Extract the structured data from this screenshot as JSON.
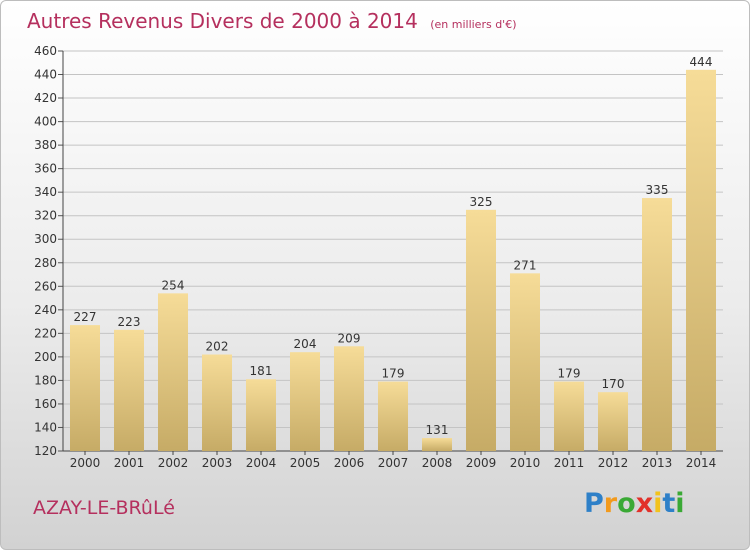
{
  "chart_data": {
    "type": "bar",
    "title": "Autres Revenus Divers de 2000 à 2014",
    "subtitle": "(en milliers d'€)",
    "categories": [
      "2000",
      "2001",
      "2002",
      "2003",
      "2004",
      "2005",
      "2006",
      "2007",
      "2008",
      "2009",
      "2010",
      "2011",
      "2012",
      "2013",
      "2014"
    ],
    "values": [
      227,
      223,
      254,
      202,
      181,
      204,
      209,
      179,
      131,
      325,
      271,
      179,
      170,
      335,
      444
    ],
    "ylim": [
      120,
      460
    ],
    "yticks": [
      120,
      140,
      160,
      180,
      200,
      220,
      240,
      260,
      280,
      300,
      320,
      340,
      360,
      380,
      400,
      420,
      440,
      460
    ],
    "grid": true,
    "bar_color": "#e8c878",
    "grid_color": "#c4c4c4",
    "title_color": "#b5305e"
  },
  "footer": {
    "town": "AZAY-LE-BRûLé",
    "logo": [
      "P",
      "r",
      "o",
      "x",
      "i",
      "t",
      "i"
    ],
    "logo_colors": [
      "#2e80c8",
      "#f29a1c",
      "#3aa935",
      "#e2312a",
      "#f2c21c",
      "#2e80c8",
      "#3aa935"
    ]
  }
}
